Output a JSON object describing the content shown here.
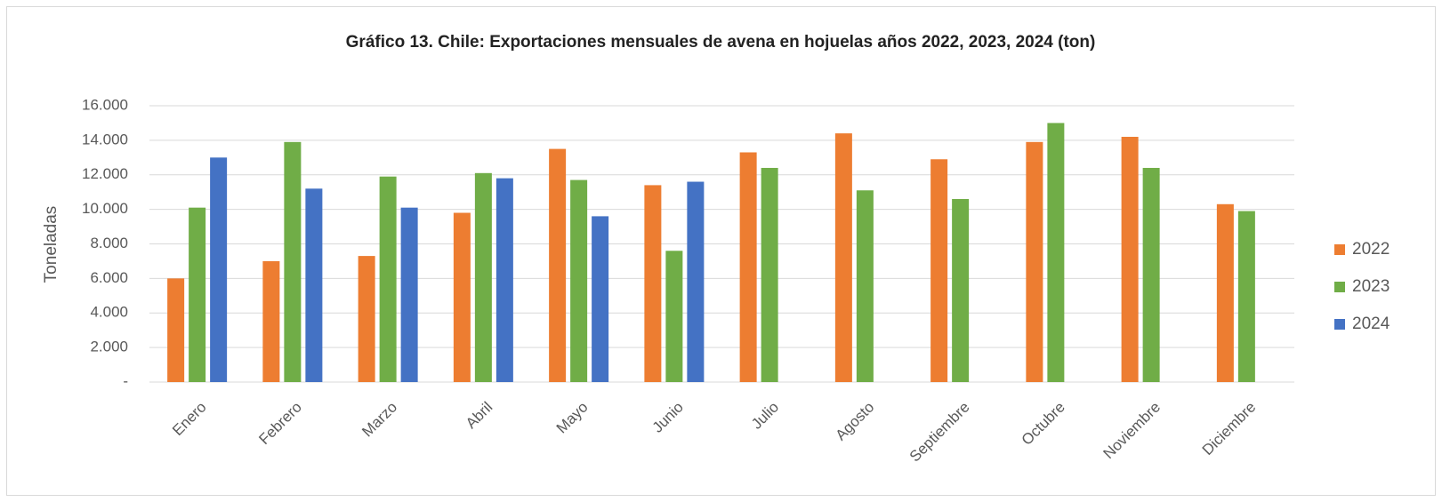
{
  "chart_data": {
    "type": "bar",
    "title": "Gráfico 13. Chile: Exportaciones mensuales de avena en hojuelas años 2022, 2023, 2024 (ton)",
    "y_label": "Toneladas",
    "categories": [
      "Enero",
      "Febrero",
      "Marzo",
      "Abril",
      "Mayo",
      "Junio",
      "Julio",
      "Agosto",
      "Septiembre",
      "Octubre",
      "Noviembre",
      "Diciembre"
    ],
    "series": [
      {
        "name": "2022",
        "color": "#ed7d31",
        "values": [
          6000,
          7000,
          7300,
          9800,
          13500,
          11400,
          13300,
          14400,
          12900,
          13900,
          14200,
          10300
        ]
      },
      {
        "name": "2023",
        "color": "#70ad47",
        "values": [
          10100,
          13900,
          11900,
          12100,
          11700,
          7600,
          12400,
          11100,
          10600,
          15000,
          12400,
          9900
        ]
      },
      {
        "name": "2024",
        "color": "#4472c4",
        "values": [
          13000,
          11200,
          10100,
          11800,
          9600,
          11600,
          null,
          null,
          null,
          null,
          null,
          null
        ]
      }
    ],
    "ylim": [
      0,
      16000
    ],
    "yticks": [
      {
        "value": 0,
        "label": "-"
      },
      {
        "value": 2000,
        "label": "2.000"
      },
      {
        "value": 4000,
        "label": "4.000"
      },
      {
        "value": 6000,
        "label": "6.000"
      },
      {
        "value": 8000,
        "label": "8.000"
      },
      {
        "value": 10000,
        "label": "10.000"
      },
      {
        "value": 12000,
        "label": "12.000"
      },
      {
        "value": 14000,
        "label": "14.000"
      },
      {
        "value": 16000,
        "label": "16.000"
      }
    ],
    "grid": true,
    "legend": "right"
  }
}
